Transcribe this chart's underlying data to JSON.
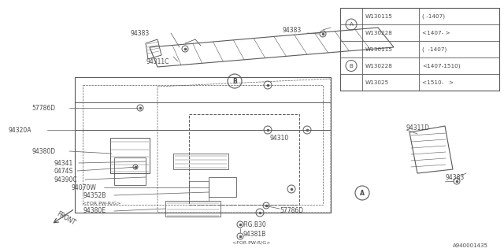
{
  "bg_color": "#ffffff",
  "line_color": "#5a5a5a",
  "text_color": "#4a4a4a",
  "diagram_number": "A940001435",
  "table_rows": [
    [
      "A",
      "W130115",
      "( -1407)"
    ],
    [
      "A",
      "W130228",
      "<1407- >"
    ],
    [
      "B",
      "W130115",
      "(  -1407)"
    ],
    [
      "B",
      "W130228",
      "<1407-1510)"
    ],
    [
      "B",
      "W13025",
      "<1510-   >"
    ]
  ]
}
